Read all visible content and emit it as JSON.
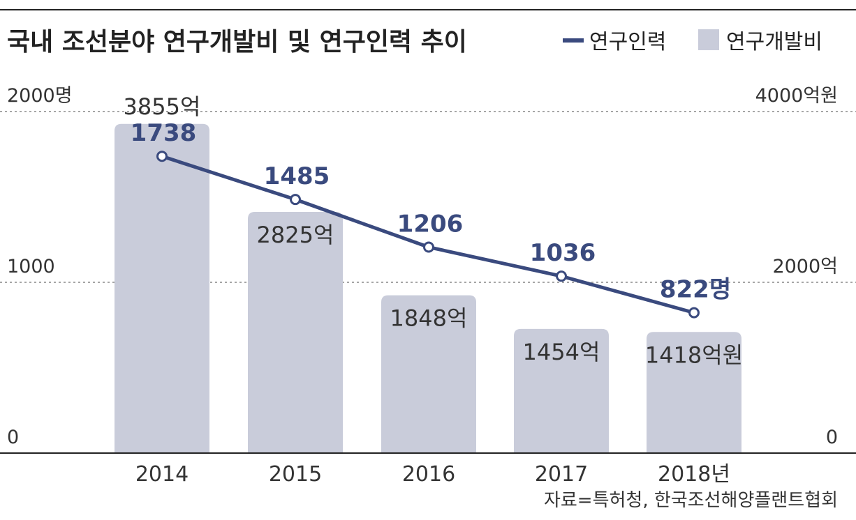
{
  "chart_data": {
    "type": "bar",
    "title": "국내 조선분야 연구개발비 및 연구인력 추이",
    "categories": [
      "2014",
      "2015",
      "2016",
      "2017",
      "2018년"
    ],
    "series": [
      {
        "name": "연구개발비",
        "type": "bar",
        "axis": "right",
        "values": [
          3855,
          2825,
          1848,
          1454,
          1418
        ],
        "labels": [
          "3855억",
          "2825억",
          "1848억",
          "1454억",
          "1418억원"
        ]
      },
      {
        "name": "연구인력",
        "type": "line",
        "axis": "left",
        "values": [
          1738,
          1485,
          1206,
          1036,
          822
        ],
        "labels": [
          "1738",
          "1485",
          "1206",
          "1036",
          "822명"
        ]
      }
    ],
    "y_left": {
      "ylim": [
        0,
        2000
      ],
      "ticks": [
        "0",
        "1000",
        "2000명"
      ]
    },
    "y_right": {
      "ylim": [
        0,
        4000
      ],
      "ticks": [
        "0",
        "2000억",
        "4000억원"
      ]
    },
    "grid": true,
    "legend_position": "top-right",
    "source": "자료=특허청, 한국조선해양플랜트협회",
    "colors": {
      "bar": "#c9ccda",
      "line": "#3a4a7e",
      "text": "#222222"
    }
  }
}
